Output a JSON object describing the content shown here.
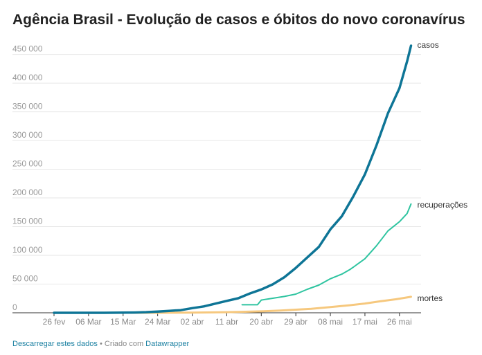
{
  "header": {
    "title": "Agência Brasil - Evolução de casos e óbitos do novo coronavírus"
  },
  "footer": {
    "download_link": "Descarregar estes dados",
    "separator": " • Criado com ",
    "datawrapper_link": "Datawrapper"
  },
  "chart_data": {
    "type": "line",
    "title": "Agência Brasil - Evolução de casos e óbitos do novo coronavírus",
    "xlabel": "",
    "ylabel": "",
    "grid": true,
    "legend": "direct labels at line ends (right)",
    "y_range": [
      0,
      470000
    ],
    "y_ticks": [
      {
        "value": 0,
        "label": "0"
      },
      {
        "value": 50000,
        "label": "50 000"
      },
      {
        "value": 100000,
        "label": "100 000"
      },
      {
        "value": 150000,
        "label": "150 000"
      },
      {
        "value": 200000,
        "label": "200 000"
      },
      {
        "value": 250000,
        "label": "250 000"
      },
      {
        "value": 300000,
        "label": "300 000"
      },
      {
        "value": 350000,
        "label": "350 000"
      },
      {
        "value": 400000,
        "label": "400 000"
      },
      {
        "value": 450000,
        "label": "450 000"
      }
    ],
    "x_range": [
      "2020-02-26",
      "2020-05-30"
    ],
    "x_ticks": [
      {
        "date": "2020-02-26",
        "label": "26 fev"
      },
      {
        "date": "2020-03-06",
        "label": "06 Mar"
      },
      {
        "date": "2020-03-15",
        "label": "15 Mar"
      },
      {
        "date": "2020-03-24",
        "label": "24 Mar"
      },
      {
        "date": "2020-04-02",
        "label": "02 abr"
      },
      {
        "date": "2020-04-11",
        "label": "11 abr"
      },
      {
        "date": "2020-04-20",
        "label": "20 abr"
      },
      {
        "date": "2020-04-29",
        "label": "29 abr"
      },
      {
        "date": "2020-05-08",
        "label": "08 mai"
      },
      {
        "date": "2020-05-17",
        "label": "17 mai"
      },
      {
        "date": "2020-05-26",
        "label": "26 mai"
      }
    ],
    "series": [
      {
        "name": "casos",
        "color": "#0e7596",
        "points": [
          [
            "2020-02-26",
            1
          ],
          [
            "2020-03-01",
            2
          ],
          [
            "2020-03-05",
            8
          ],
          [
            "2020-03-10",
            34
          ],
          [
            "2020-03-15",
            200
          ],
          [
            "2020-03-18",
            428
          ],
          [
            "2020-03-21",
            1128
          ],
          [
            "2020-03-24",
            2201
          ],
          [
            "2020-03-27",
            3417
          ],
          [
            "2020-03-30",
            4579
          ],
          [
            "2020-04-02",
            8044
          ],
          [
            "2020-04-05",
            11130
          ],
          [
            "2020-04-08",
            15927
          ],
          [
            "2020-04-11",
            20727
          ],
          [
            "2020-04-14",
            25262
          ],
          [
            "2020-04-17",
            33682
          ],
          [
            "2020-04-20",
            40581
          ],
          [
            "2020-04-23",
            49492
          ],
          [
            "2020-04-26",
            61888
          ],
          [
            "2020-04-29",
            78162
          ],
          [
            "2020-05-02",
            96559
          ],
          [
            "2020-05-05",
            114715
          ],
          [
            "2020-05-08",
            145328
          ],
          [
            "2020-05-11",
            168331
          ],
          [
            "2020-05-14",
            202918
          ],
          [
            "2020-05-17",
            241080
          ],
          [
            "2020-05-20",
            291579
          ],
          [
            "2020-05-23",
            347398
          ],
          [
            "2020-05-26",
            391222
          ],
          [
            "2020-05-28",
            438238
          ],
          [
            "2020-05-29",
            465166
          ]
        ]
      },
      {
        "name": "recuperações",
        "color": "#2ec4a0",
        "points": [
          [
            "2020-04-15",
            14026
          ],
          [
            "2020-04-18",
            14026
          ],
          [
            "2020-04-19",
            14026
          ],
          [
            "2020-04-20",
            22130
          ],
          [
            "2020-04-23",
            25318
          ],
          [
            "2020-04-26",
            28500
          ],
          [
            "2020-04-29",
            32544
          ],
          [
            "2020-05-02",
            40937
          ],
          [
            "2020-05-05",
            48221
          ],
          [
            "2020-05-08",
            59297
          ],
          [
            "2020-05-11",
            67384
          ],
          [
            "2020-05-13",
            75000
          ],
          [
            "2020-05-14",
            79479
          ],
          [
            "2020-05-17",
            94122
          ],
          [
            "2020-05-20",
            116683
          ],
          [
            "2020-05-23",
            142587
          ],
          [
            "2020-05-26",
            158593
          ],
          [
            "2020-05-28",
            173000
          ],
          [
            "2020-05-29",
            189476
          ]
        ]
      },
      {
        "name": "mortes",
        "color": "#f6c87e",
        "points": [
          [
            "2020-03-17",
            1
          ],
          [
            "2020-03-20",
            11
          ],
          [
            "2020-03-24",
            46
          ],
          [
            "2020-03-28",
            114
          ],
          [
            "2020-04-02",
            324
          ],
          [
            "2020-04-06",
            553
          ],
          [
            "2020-04-11",
            1124
          ],
          [
            "2020-04-15",
            1736
          ],
          [
            "2020-04-20",
            2575
          ],
          [
            "2020-04-25",
            4016
          ],
          [
            "2020-04-29",
            5466
          ],
          [
            "2020-05-03",
            7025
          ],
          [
            "2020-05-08",
            9897
          ],
          [
            "2020-05-13",
            13149
          ],
          [
            "2020-05-17",
            16118
          ],
          [
            "2020-05-21",
            20047
          ],
          [
            "2020-05-25",
            23473
          ],
          [
            "2020-05-29",
            27878
          ]
        ]
      }
    ]
  }
}
